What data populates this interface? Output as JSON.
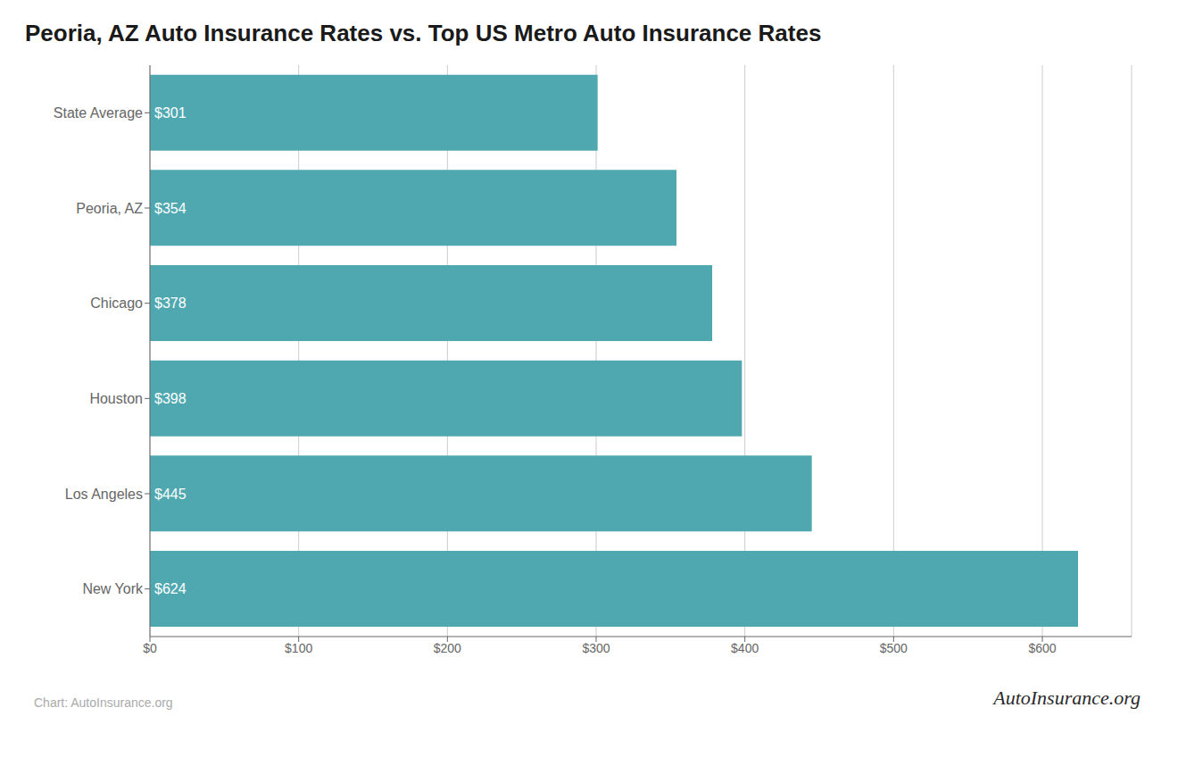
{
  "chart_data": {
    "type": "bar",
    "orientation": "horizontal",
    "title": "Peoria, AZ Auto Insurance Rates vs. Top US Metro Auto Insurance Rates",
    "categories": [
      "State Average",
      "Peoria, AZ",
      "Chicago",
      "Houston",
      "Los Angeles",
      "New York"
    ],
    "values": [
      301,
      354,
      378,
      398,
      445,
      624
    ],
    "value_labels": [
      "$301",
      "$354",
      "$378",
      "$398",
      "$445",
      "$624"
    ],
    "data_labels": true,
    "color": "#4fa8b0",
    "xlim": [
      0,
      660
    ],
    "xticks": [
      {
        "value": 0,
        "label": "$0"
      },
      {
        "value": 100,
        "label": "$100"
      },
      {
        "value": 200,
        "label": "$200"
      },
      {
        "value": 300,
        "label": "$300"
      },
      {
        "value": 400,
        "label": "$400"
      },
      {
        "value": 500,
        "label": "$500"
      },
      {
        "value": 600,
        "label": "$600"
      }
    ],
    "grid": true,
    "annotations": [
      "Chart: AutoInsurance.org",
      "AutoInsurance.org"
    ]
  }
}
